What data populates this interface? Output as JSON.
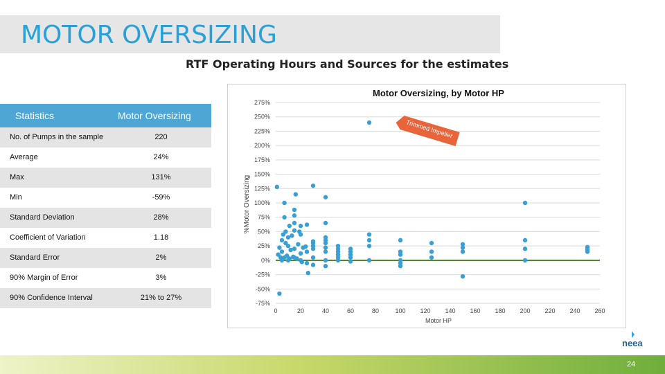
{
  "page": {
    "title": "MOTOR OVERSIZING",
    "subtitle": "RTF Operating Hours and Sources for the estimates",
    "page_number": "24",
    "logo_text": "neea"
  },
  "stats_table": {
    "headers": [
      "Statistics",
      "Motor Oversizing"
    ],
    "rows": [
      {
        "label": "No. of Pumps in the sample",
        "value": "220"
      },
      {
        "label": "Average",
        "value": "24%"
      },
      {
        "label": "Max",
        "value": "131%"
      },
      {
        "label": "Min",
        "value": "-59%"
      },
      {
        "label": "Standard Deviation",
        "value": "28%"
      },
      {
        "label": "Coefficient of Variation",
        "value": "1.18"
      },
      {
        "label": "Standard Error",
        "value": "2%"
      },
      {
        "label": "90% Margin of Error",
        "value": "3%"
      },
      {
        "label": "90% Confidence Interval",
        "value": "21% to 27%"
      }
    ]
  },
  "colors": {
    "title": "#2aa0d6",
    "header_fill": "#4ea6d4",
    "point": "#3a9fd2",
    "zero_line": "#4a7a2a",
    "arrow": "#e8643a"
  },
  "chart_data": {
    "type": "scatter",
    "title": "Motor Oversizing, by Motor HP",
    "xlabel": "Motor HP",
    "ylabel": "%Motor Oversizing",
    "xlim": [
      0,
      260
    ],
    "ylim": [
      -75,
      275
    ],
    "xticks": [
      0,
      20,
      40,
      60,
      80,
      100,
      120,
      140,
      160,
      180,
      200,
      220,
      240,
      260
    ],
    "yticks": [
      -75,
      -50,
      -25,
      0,
      25,
      50,
      75,
      100,
      125,
      150,
      175,
      200,
      225,
      250,
      275
    ],
    "ytick_labels": [
      "-75%",
      "-50%",
      "-25%",
      "0%",
      "25%",
      "50%",
      "75%",
      "100%",
      "125%",
      "150%",
      "175%",
      "200%",
      "225%",
      "250%",
      "275%"
    ],
    "annotation": {
      "text": "Trimmed Impeller"
    },
    "points": [
      [
        1,
        128
      ],
      [
        3,
        -58
      ],
      [
        2,
        10
      ],
      [
        3,
        22
      ],
      [
        4,
        5
      ],
      [
        5,
        0
      ],
      [
        5,
        15
      ],
      [
        5,
        35
      ],
      [
        6,
        45
      ],
      [
        7,
        5
      ],
      [
        7,
        75
      ],
      [
        7,
        100
      ],
      [
        8,
        30
      ],
      [
        8,
        50
      ],
      [
        9,
        8
      ],
      [
        10,
        25
      ],
      [
        10,
        40
      ],
      [
        10,
        0
      ],
      [
        11,
        3
      ],
      [
        11,
        60
      ],
      [
        12,
        18
      ],
      [
        13,
        43
      ],
      [
        14,
        6
      ],
      [
        15,
        5
      ],
      [
        15,
        20
      ],
      [
        15,
        52
      ],
      [
        15,
        65
      ],
      [
        15,
        78
      ],
      [
        15,
        88
      ],
      [
        16,
        115
      ],
      [
        17,
        3
      ],
      [
        18,
        28
      ],
      [
        19,
        50
      ],
      [
        20,
        12
      ],
      [
        20,
        45
      ],
      [
        20,
        60
      ],
      [
        20,
        0
      ],
      [
        21,
        -3
      ],
      [
        22,
        22
      ],
      [
        24,
        24
      ],
      [
        25,
        -5
      ],
      [
        25,
        15
      ],
      [
        25,
        62
      ],
      [
        26,
        -22
      ],
      [
        30,
        130
      ],
      [
        30,
        -8
      ],
      [
        30,
        5
      ],
      [
        30,
        20
      ],
      [
        30,
        25
      ],
      [
        30,
        30
      ],
      [
        30,
        33
      ],
      [
        40,
        110
      ],
      [
        40,
        -10
      ],
      [
        40,
        0
      ],
      [
        40,
        15
      ],
      [
        40,
        22
      ],
      [
        40,
        30
      ],
      [
        40,
        35
      ],
      [
        40,
        40
      ],
      [
        40,
        65
      ],
      [
        50,
        0
      ],
      [
        50,
        5
      ],
      [
        50,
        10
      ],
      [
        50,
        15
      ],
      [
        50,
        20
      ],
      [
        50,
        25
      ],
      [
        60,
        -2
      ],
      [
        60,
        5
      ],
      [
        60,
        10
      ],
      [
        60,
        15
      ],
      [
        60,
        20
      ],
      [
        75,
        240
      ],
      [
        75,
        0
      ],
      [
        75,
        25
      ],
      [
        75,
        35
      ],
      [
        75,
        45
      ],
      [
        100,
        -5
      ],
      [
        100,
        -10
      ],
      [
        100,
        0
      ],
      [
        100,
        10
      ],
      [
        100,
        15
      ],
      [
        100,
        35
      ],
      [
        125,
        5
      ],
      [
        125,
        15
      ],
      [
        125,
        30
      ],
      [
        150,
        -28
      ],
      [
        150,
        15
      ],
      [
        150,
        22
      ],
      [
        150,
        28
      ],
      [
        200,
        100
      ],
      [
        200,
        0
      ],
      [
        200,
        20
      ],
      [
        200,
        35
      ],
      [
        250,
        15
      ],
      [
        250,
        18
      ],
      [
        250,
        20
      ],
      [
        250,
        23
      ]
    ]
  }
}
